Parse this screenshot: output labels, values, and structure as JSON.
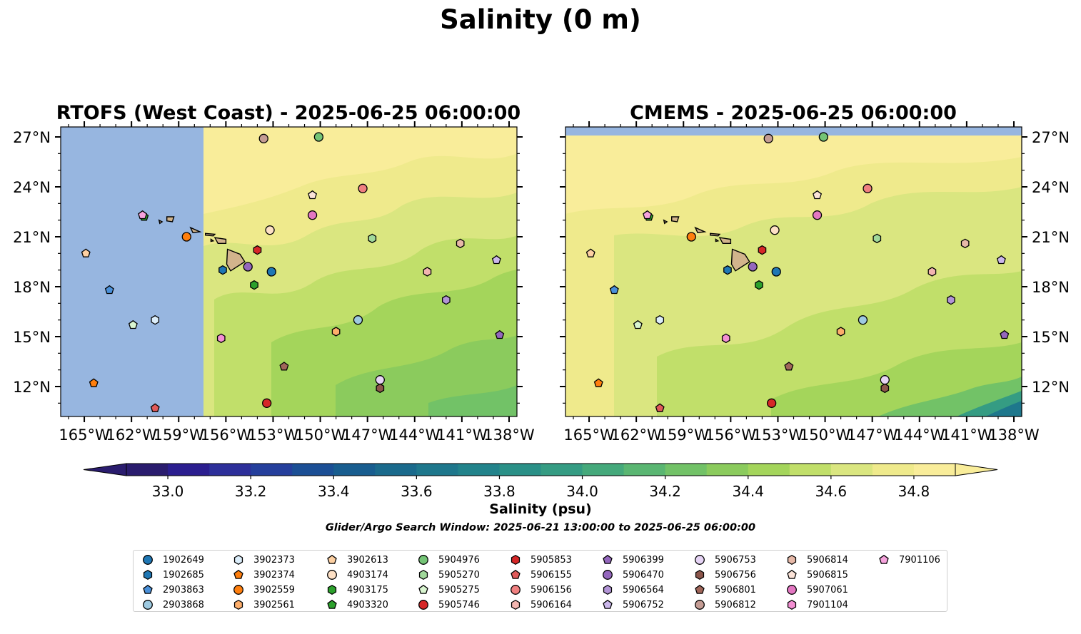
{
  "title": "Salinity (0 m)",
  "colorbar": {
    "label": "Salinity (psu)",
    "ticks": [
      "33.0",
      "33.2",
      "33.4",
      "33.6",
      "33.8",
      "34.0",
      "34.2",
      "34.4",
      "34.6",
      "34.8"
    ],
    "levels_min": 32.9,
    "levels_max": 34.9,
    "step": 0.1,
    "extend": "both",
    "colors": [
      "#2a1c6e",
      "#2b1e8f",
      "#2d2f9a",
      "#253f9c",
      "#1b4f95",
      "#185d8f",
      "#1a6a8c",
      "#1e778c",
      "#22838b",
      "#2a9087",
      "#359c83",
      "#45a97b",
      "#5ab672",
      "#72c267",
      "#8bcb5d",
      "#a4d55b",
      "#c1df6a",
      "#dae680",
      "#efea8c",
      "#f9ed9a"
    ]
  },
  "search_window": "Glider/Argo Search Window: 2025-06-21 13:00:00 to 2025-06-25 06:00:00",
  "chart_data": [
    {
      "type": "map",
      "title": "RTOFS (West Coast) - 2025-06-25 06:00:00",
      "lon_range": [
        -166.5,
        -137.5
      ],
      "lat_range": [
        10.2,
        27.6
      ],
      "x_tick_labels": [
        "165°W",
        "162°W",
        "159°W",
        "156°W",
        "153°W",
        "150°W",
        "147°W",
        "144°W",
        "141°W",
        "138°W"
      ],
      "y_tick_labels": [
        "12°N",
        "15°N",
        "18°N",
        "21°N",
        "24°N",
        "27°N"
      ],
      "y_labels_side": "left",
      "no_data_region": "west of 157.4°W",
      "no_data_color": "#97b6e0"
    },
    {
      "type": "map",
      "title": "CMEMS - 2025-06-25 06:00:00",
      "lon_range": [
        -166.5,
        -137.5
      ],
      "lat_range": [
        10.2,
        27.6
      ],
      "x_tick_labels": [
        "165°W",
        "162°W",
        "159°W",
        "156°W",
        "153°W",
        "150°W",
        "147°W",
        "144°W",
        "141°W",
        "138°W"
      ],
      "y_tick_labels": [
        "12°N",
        "15°N",
        "18°N",
        "21°N",
        "24°N",
        "27°N"
      ],
      "y_labels_side": "right",
      "no_data_region": "north of 27.1°N",
      "no_data_color": "#97b6e0"
    }
  ],
  "observations": [
    {
      "id": "1902649",
      "marker": "circle",
      "color": "#1f77b4",
      "lon": -153.1,
      "lat": 18.9
    },
    {
      "id": "1902685",
      "marker": "hexagon",
      "color": "#1f77b4",
      "lon": -156.2,
      "lat": 19.0
    },
    {
      "id": "2903863",
      "marker": "pentagon",
      "color": "#4a90d9",
      "lon": -163.4,
      "lat": 17.8
    },
    {
      "id": "2903868",
      "marker": "circle",
      "color": "#9ecae1",
      "lon": -147.6,
      "lat": 16.0
    },
    {
      "id": "3902373",
      "marker": "hexagon",
      "color": "#dceefb",
      "lon": -160.5,
      "lat": 16.0
    },
    {
      "id": "3902374",
      "marker": "pentagon",
      "color": "#ff7f0e",
      "lon": -164.4,
      "lat": 12.2
    },
    {
      "id": "3902559",
      "marker": "circle",
      "color": "#ff7f0e",
      "lon": -158.5,
      "lat": 21.0
    },
    {
      "id": "3902561",
      "marker": "hexagon",
      "color": "#fdae6b",
      "lon": -149.0,
      "lat": 15.3
    },
    {
      "id": "3902613",
      "marker": "pentagon",
      "color": "#fdd0a2",
      "lon": -164.9,
      "lat": 20.0
    },
    {
      "id": "4903174",
      "marker": "circle",
      "color": "#fde0c5",
      "lon": -153.2,
      "lat": 21.4
    },
    {
      "id": "4903175",
      "marker": "hexagon",
      "color": "#2ca02c",
      "lon": -154.2,
      "lat": 18.1
    },
    {
      "id": "4903320",
      "marker": "pentagon",
      "color": "#2ca02c",
      "lon": -161.2,
      "lat": 22.2
    },
    {
      "id": "5904976",
      "marker": "circle",
      "color": "#74c476",
      "lon": -150.1,
      "lat": 27.0
    },
    {
      "id": "5905270",
      "marker": "hexagon",
      "color": "#a1d99b",
      "lon": -146.7,
      "lat": 20.9
    },
    {
      "id": "5905275",
      "marker": "pentagon",
      "color": "#d9f5d0",
      "lon": -161.9,
      "lat": 15.7
    },
    {
      "id": "5905746",
      "marker": "circle",
      "color": "#d62728",
      "lon": -153.4,
      "lat": 11.0
    },
    {
      "id": "5905853",
      "marker": "hexagon",
      "color": "#d62728",
      "lon": -154.0,
      "lat": 20.2
    },
    {
      "id": "5906155",
      "marker": "pentagon",
      "color": "#e05a5a",
      "lon": -160.5,
      "lat": 10.7
    },
    {
      "id": "5906156",
      "marker": "circle",
      "color": "#f08080",
      "lon": -147.3,
      "lat": 23.9
    },
    {
      "id": "5906164",
      "marker": "hexagon",
      "color": "#f2b5b0",
      "lon": -143.2,
      "lat": 18.9
    },
    {
      "id": "5906399",
      "marker": "pentagon",
      "color": "#9467bd",
      "lon": -138.6,
      "lat": 15.1
    },
    {
      "id": "5906470",
      "marker": "circle",
      "color": "#9467bd",
      "lon": -154.6,
      "lat": 19.2
    },
    {
      "id": "5906564",
      "marker": "hexagon",
      "color": "#b294d6",
      "lon": -142.0,
      "lat": 17.2
    },
    {
      "id": "5906752",
      "marker": "pentagon",
      "color": "#cbb7eb",
      "lon": -138.8,
      "lat": 19.6
    },
    {
      "id": "5906753",
      "marker": "circle",
      "color": "#e6d4f5",
      "lon": -146.2,
      "lat": 12.4
    },
    {
      "id": "5906756",
      "marker": "hexagon",
      "color": "#8c564b",
      "lon": -146.2,
      "lat": 11.9
    },
    {
      "id": "5906801",
      "marker": "pentagon",
      "color": "#a0665a",
      "lon": -152.3,
      "lat": 13.2
    },
    {
      "id": "5906812",
      "marker": "circle",
      "color": "#c49c94",
      "lon": -153.6,
      "lat": 26.9
    },
    {
      "id": "5906814",
      "marker": "hexagon",
      "color": "#e7b9a8",
      "lon": -141.1,
      "lat": 20.6
    },
    {
      "id": "5906815",
      "marker": "pentagon",
      "color": "#fbe3d8",
      "lon": -150.5,
      "lat": 23.5
    },
    {
      "id": "5907061",
      "marker": "circle",
      "color": "#e377c2",
      "lon": -150.5,
      "lat": 22.3
    },
    {
      "id": "7901104",
      "marker": "hexagon",
      "color": "#f38fd3",
      "lon": -156.3,
      "lat": 14.9
    },
    {
      "id": "7901106",
      "marker": "pentagon",
      "color": "#f6a3dd",
      "lon": -161.3,
      "lat": 22.3
    }
  ],
  "colors": {
    "ocean_base": "#f9ed9a",
    "no_data": "#97b6e0",
    "land": "#d2b48c"
  }
}
